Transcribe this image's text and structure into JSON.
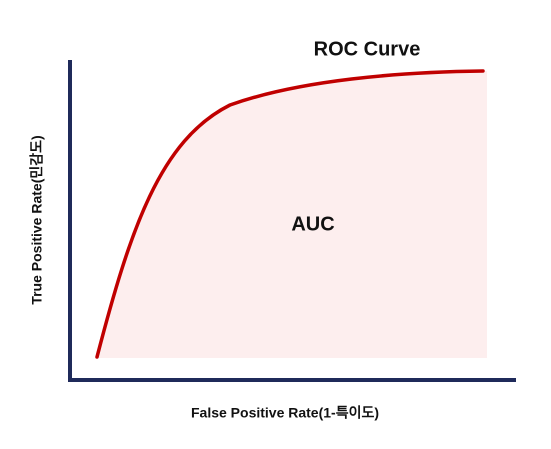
{
  "title": "ROC Curve",
  "area_label": "AUC",
  "x_axis_label": "False Positive Rate(1-특이도)",
  "y_axis_label": "True Positive Rate(민감도)"
}
